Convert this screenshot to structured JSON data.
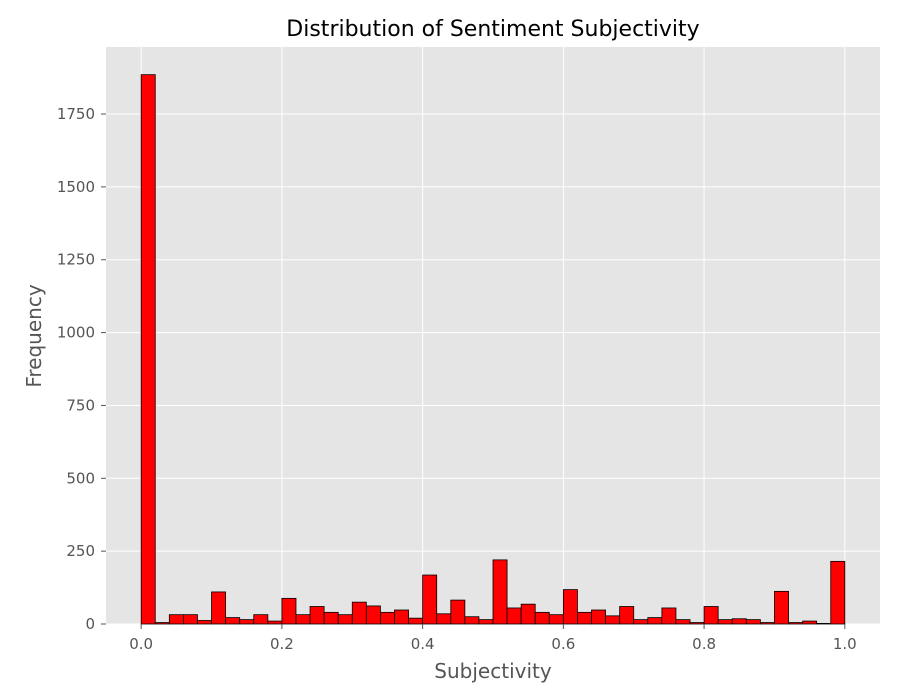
{
  "chart_data": {
    "type": "bar",
    "title": "Distribution of Sentiment Subjectivity",
    "xlabel": "Subjectivity",
    "ylabel": "Frequency",
    "x_ticks": [
      "0.0",
      "0.2",
      "0.4",
      "0.6",
      "0.8",
      "1.0"
    ],
    "y_ticks": [
      "0",
      "250",
      "500",
      "750",
      "1000",
      "1250",
      "1500",
      "1750"
    ],
    "xlim": [
      -0.05,
      1.05
    ],
    "ylim": [
      0,
      1980
    ],
    "bins": 50,
    "bin_range": [
      0.0,
      1.0
    ],
    "values": [
      1885,
      5,
      32,
      32,
      12,
      110,
      22,
      15,
      32,
      10,
      88,
      32,
      60,
      40,
      32,
      75,
      62,
      40,
      48,
      20,
      168,
      35,
      82,
      25,
      15,
      220,
      55,
      68,
      40,
      32,
      118,
      40,
      48,
      28,
      60,
      15,
      22,
      55,
      15,
      5,
      60,
      15,
      18,
      15,
      5,
      112,
      5,
      10,
      2,
      215
    ],
    "grid": true,
    "legend": "none",
    "colors": {
      "bar_fill": "#ff0000",
      "bar_edge": "#000000",
      "plot_background": "#e5e5e5",
      "grid": "#ffffff"
    }
  }
}
